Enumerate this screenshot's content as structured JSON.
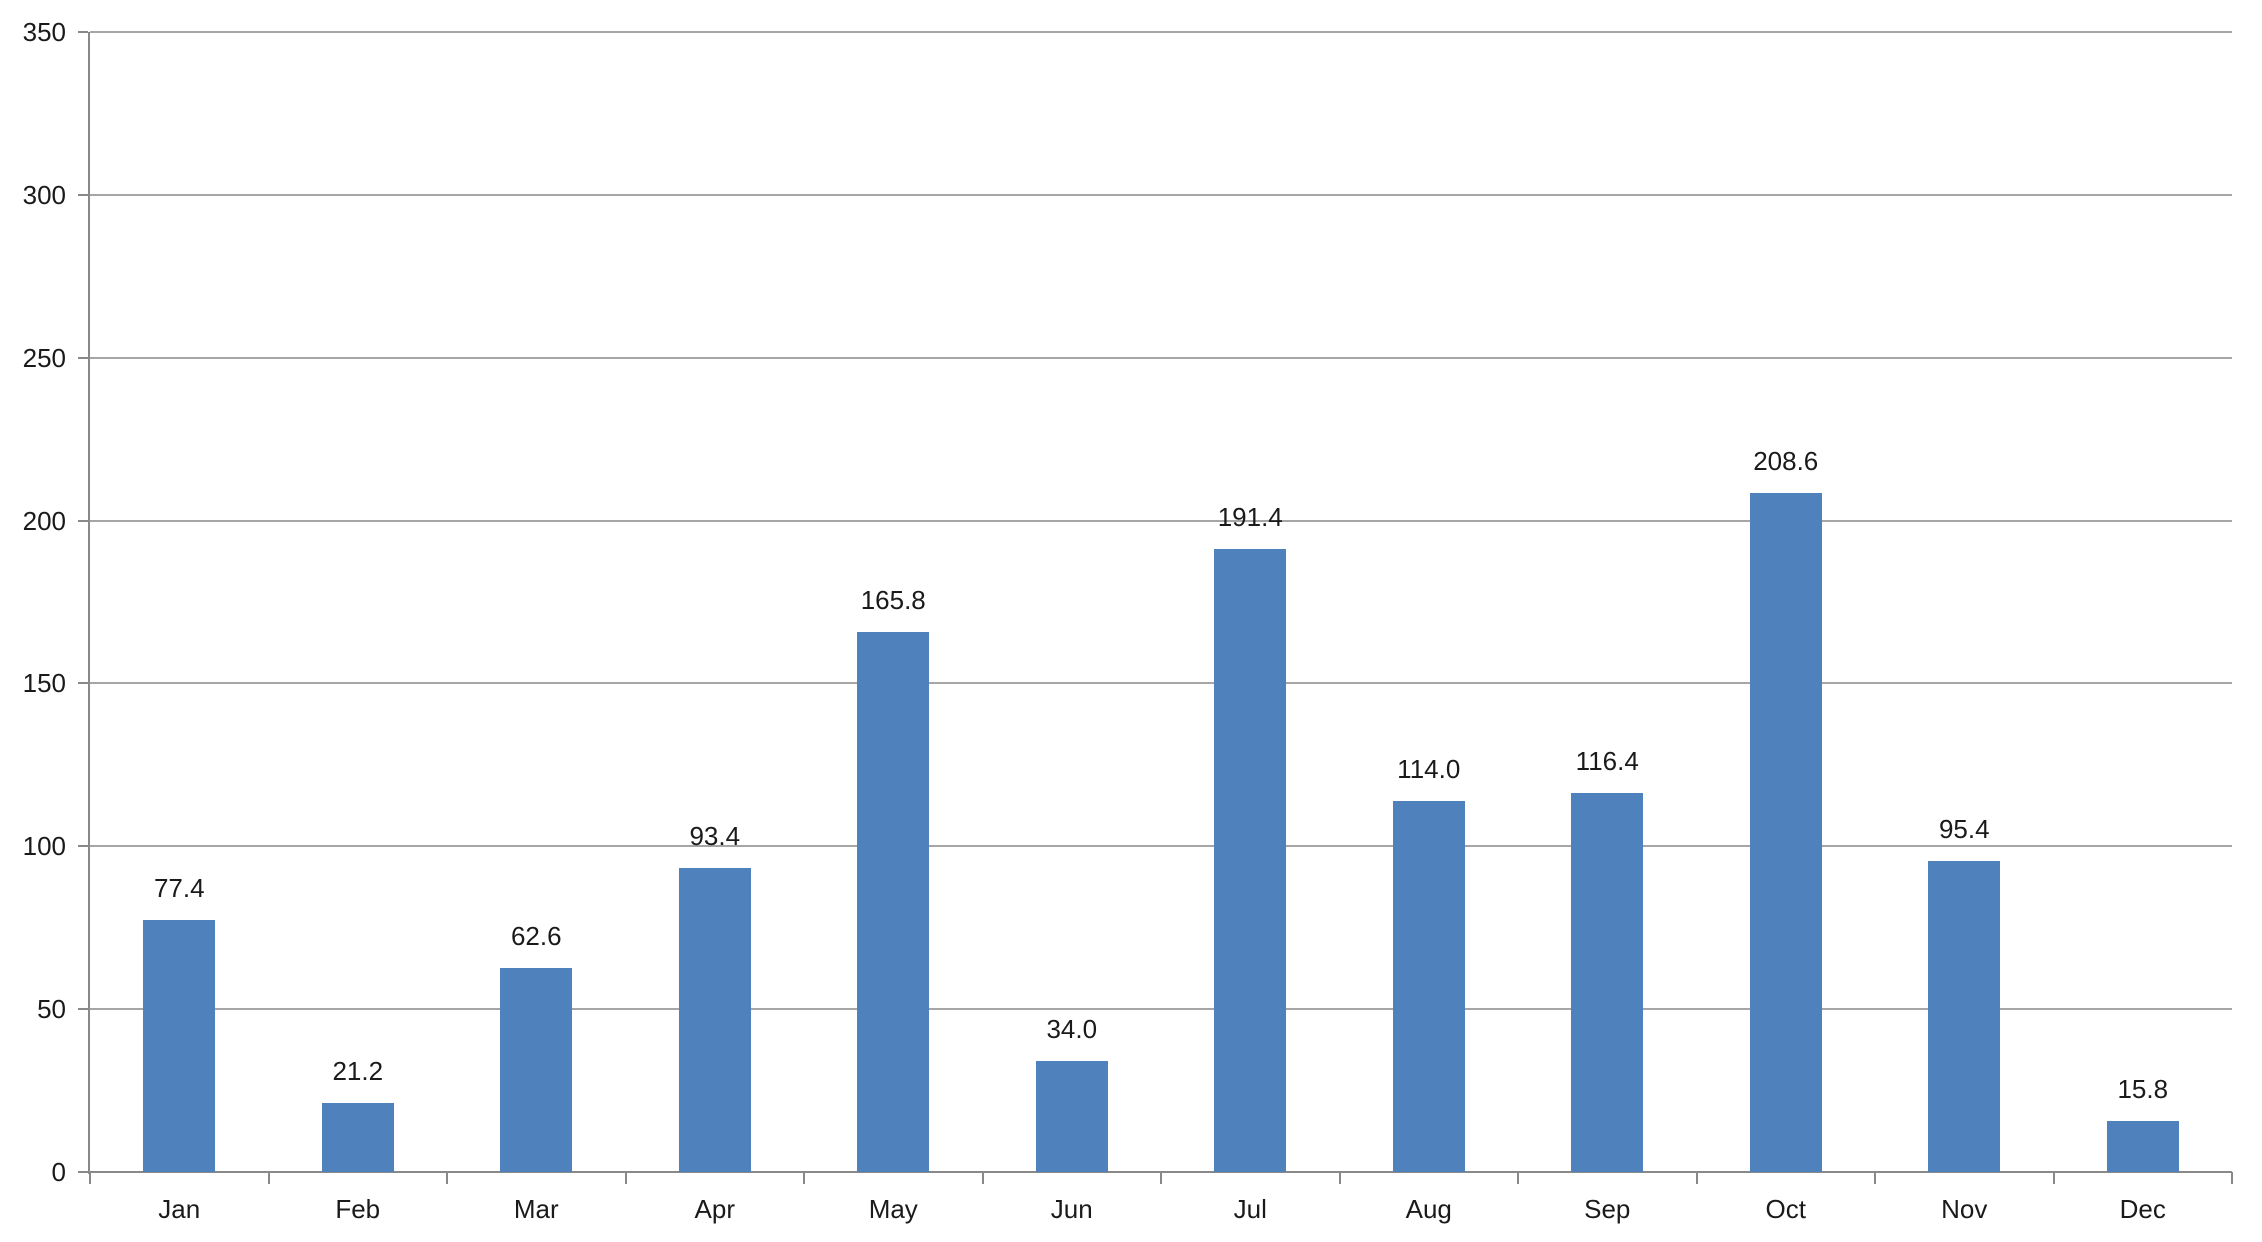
{
  "chart_data": {
    "type": "bar",
    "title": "",
    "xlabel": "",
    "ylabel": "",
    "categories": [
      "Jan",
      "Feb",
      "Mar",
      "Apr",
      "May",
      "Jun",
      "Jul",
      "Aug",
      "Sep",
      "Oct",
      "Nov",
      "Dec"
    ],
    "values": [
      77.4,
      21.2,
      62.6,
      93.4,
      165.8,
      34.0,
      191.4,
      114.0,
      116.4,
      208.6,
      95.4,
      15.8
    ],
    "data_labels": [
      "77.4",
      "21.2",
      "62.6",
      "93.4",
      "165.8",
      "34.0",
      "191.4",
      "114.0",
      "116.4",
      "208.6",
      "95.4",
      "15.8"
    ],
    "ylim": [
      0,
      350
    ],
    "ytick_interval": 50,
    "ytick_labels": [
      "0",
      "50",
      "100",
      "150",
      "200",
      "250",
      "300",
      "350"
    ],
    "grid": true,
    "legend_position": "none",
    "data_labels_shown": true,
    "colors": {
      "bar": "#4f81bd",
      "gridline": "#a6a6a6",
      "axis": "#898989",
      "text": "#1a1a1a",
      "background": "#ffffff"
    }
  }
}
